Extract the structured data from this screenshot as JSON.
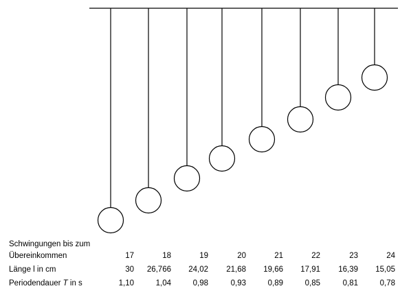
{
  "pendulums": [
    {
      "count": "17",
      "length": "30",
      "period": "1,10"
    },
    {
      "count": "18",
      "length": "26,766",
      "period": "1,04"
    },
    {
      "count": "19",
      "length": "24,02",
      "period": "0,98"
    },
    {
      "count": "20",
      "length": "21,68",
      "period": "0,93"
    },
    {
      "count": "21",
      "length": "19,66",
      "period": "0,89"
    },
    {
      "count": "22",
      "length": "17,91",
      "period": "0,85"
    },
    {
      "count": "23",
      "length": "16,39",
      "period": "0,81"
    },
    {
      "count": "24",
      "length": "15,05",
      "period": "0,78"
    }
  ],
  "table": {
    "row1_label_line1": "Schwingungen bis zum",
    "row1_label_line2": "Übereinkommen",
    "row2_label": "Länge l in cm",
    "row3_label_prefix": "Periodendauer ",
    "row3_label_symbol": "T",
    "row3_label_suffix": " in s"
  }
}
